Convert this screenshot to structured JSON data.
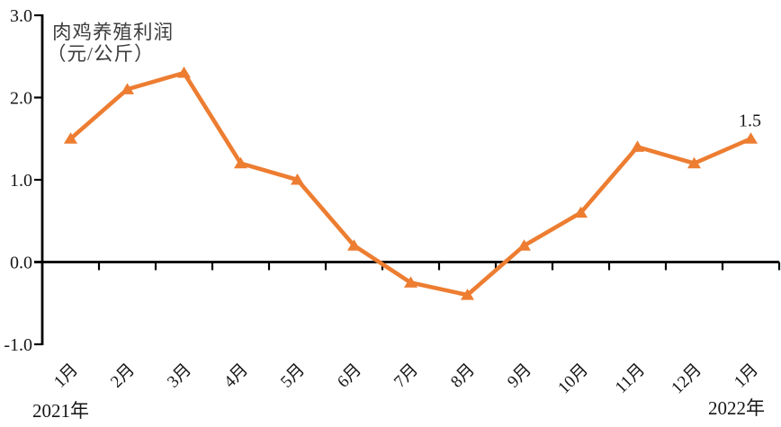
{
  "chart_data": {
    "type": "line",
    "title": "肉鸡养殖利润（元/公斤）",
    "title_lines": [
      "肉鸡养殖利润",
      "（元/公斤）"
    ],
    "categories": [
      "1月",
      "2月",
      "3月",
      "4月",
      "5月",
      "6月",
      "7月",
      "8月",
      "9月",
      "10月",
      "11月",
      "12月",
      "1月"
    ],
    "series": [
      {
        "name": "肉鸡养殖利润",
        "values": [
          1.5,
          2.1,
          2.3,
          1.2,
          1.0,
          0.2,
          -0.25,
          -0.4,
          0.2,
          0.6,
          1.4,
          1.2,
          1.5
        ]
      }
    ],
    "year_labels": {
      "start": "2021年",
      "end": "2022年"
    },
    "yticks": [
      "3.0",
      "2.0",
      "1.0",
      "0.0",
      "-1.0"
    ],
    "ylim": [
      -1.0,
      3.0
    ],
    "xlabel": "",
    "ylabel": "肉鸡养殖利润（元/公斤）",
    "grid": false,
    "legend": false,
    "marker": "triangle",
    "line_color": "#ED7D31",
    "axis_color": "#000000",
    "data_label": {
      "index": 12,
      "text": "1.5"
    }
  }
}
